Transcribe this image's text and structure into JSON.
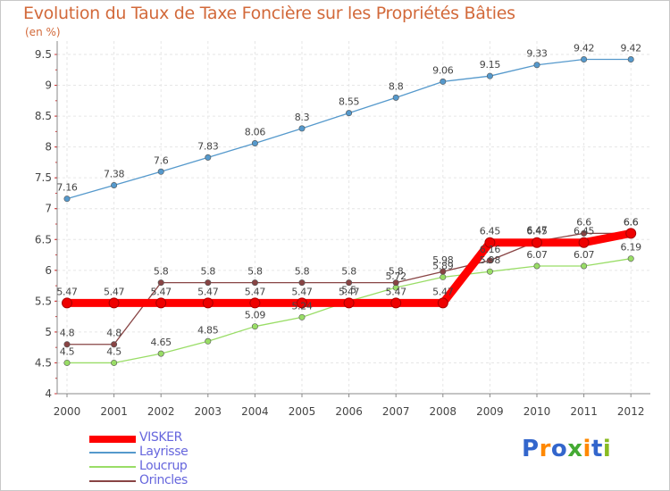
{
  "chart_data": {
    "type": "line",
    "title": "Evolution du Taux de Taxe Foncière sur les Propriétés Bâties",
    "subtitle": "(en %)",
    "xlabel": "",
    "ylabel": "",
    "ylim": [
      4,
      9.5
    ],
    "yticks": [
      "4",
      "4.5",
      "5",
      "5.5",
      "6",
      "6.5",
      "7",
      "7.5",
      "8",
      "8.5",
      "9",
      "9.5"
    ],
    "categories": [
      "2000",
      "2001",
      "2002",
      "2003",
      "2004",
      "2005",
      "2006",
      "2007",
      "2008",
      "2009",
      "2010",
      "2011",
      "2012"
    ],
    "series": [
      {
        "name": "VISKER",
        "color": "#ff0000",
        "values": [
          5.47,
          5.47,
          5.47,
          5.47,
          5.47,
          5.47,
          5.47,
          5.47,
          5.47,
          6.45,
          6.45,
          6.45,
          6.6
        ],
        "labels": [
          "5.47",
          "5.47",
          "5.47",
          "5.47",
          "5.47",
          "5.47",
          "5.47",
          "5.47",
          "5.47",
          "6.45",
          "6.45",
          "6.45",
          "6.6"
        ]
      },
      {
        "name": "Layrisse",
        "color": "#5599cc",
        "values": [
          7.16,
          7.38,
          7.6,
          7.83,
          8.06,
          8.3,
          8.55,
          8.8,
          9.06,
          9.15,
          9.33,
          9.42,
          9.42
        ],
        "labels": [
          "7.16",
          "7.38",
          "7.6",
          "7.83",
          "8.06",
          "8.3",
          "8.55",
          "8.8",
          "9.06",
          "9.15",
          "9.33",
          "9.42",
          "9.42"
        ]
      },
      {
        "name": "Loucrup",
        "color": "#99dd66",
        "values": [
          4.5,
          4.5,
          4.65,
          4.85,
          5.09,
          5.24,
          5.5,
          5.72,
          5.89,
          5.98,
          6.07,
          6.07,
          6.19
        ],
        "labels": [
          "4.5",
          "4.5",
          "4.65",
          "4.85",
          "5.09",
          "5.24",
          "5.5",
          "5.72",
          "5.89",
          "5.98",
          "6.07",
          "6.07",
          "6.19"
        ]
      },
      {
        "name": "Orincles",
        "color": "#884444",
        "values": [
          4.8,
          4.8,
          5.8,
          5.8,
          5.8,
          5.8,
          5.8,
          5.8,
          5.98,
          6.16,
          6.47,
          6.6,
          6.6
        ],
        "labels": [
          "4.8",
          "4.8",
          "5.8",
          "5.8",
          "5.8",
          "5.8",
          "5.8",
          "5.8",
          "5.98",
          "6.16",
          "6.47",
          "6.6",
          "6.6"
        ]
      }
    ],
    "grid": true,
    "legend_position": "bottom-left"
  },
  "legend": {
    "items": [
      "VISKER",
      "Layrisse",
      "Loucrup",
      "Orincles"
    ]
  },
  "logo": {
    "letters": [
      "P",
      "r",
      "o",
      "x",
      "i",
      "t",
      "i"
    ],
    "colors": [
      "#3366cc",
      "#ff8800",
      "#3366cc",
      "#44aa33",
      "#ff8800",
      "#3366cc",
      "#88bb22"
    ]
  }
}
